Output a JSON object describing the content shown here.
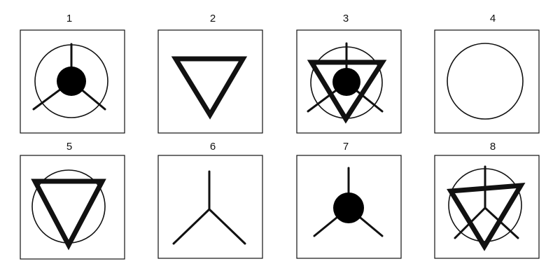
{
  "panels": [
    {
      "label": "1",
      "parts": [
        "circle",
        "spokes",
        "dot"
      ]
    },
    {
      "label": "2",
      "parts": [
        "triangle"
      ]
    },
    {
      "label": "3",
      "parts": [
        "circle",
        "spokes",
        "dot",
        "triangle"
      ]
    },
    {
      "label": "4",
      "parts": [
        "circle"
      ]
    },
    {
      "label": "5",
      "parts": [
        "circle",
        "triangle"
      ]
    },
    {
      "label": "6",
      "parts": [
        "spokes"
      ]
    },
    {
      "label": "7",
      "parts": [
        "spokes",
        "dot"
      ]
    },
    {
      "label": "8",
      "parts": [
        "circle",
        "spokes",
        "triangle"
      ]
    }
  ],
  "colors": {
    "ink": "#111111",
    "background": "#ffffff"
  }
}
